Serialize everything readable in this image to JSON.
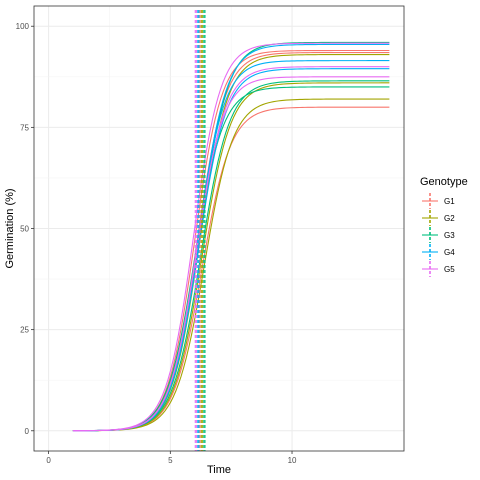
{
  "chart_data": {
    "type": "line",
    "title": "",
    "xlabel": "Time",
    "ylabel": "Germination (%)",
    "xlim": [
      -0.6,
      14.6
    ],
    "ylim": [
      -5,
      105
    ],
    "x_ticks": [
      0,
      5,
      10
    ],
    "x_tick_labels": [
      "0",
      "5",
      "10"
    ],
    "y_ticks": [
      0,
      25,
      50,
      75,
      100
    ],
    "y_tick_labels": [
      "0",
      "25",
      "50",
      "75",
      "100"
    ],
    "grid": true,
    "legend": {
      "title": "Genotype",
      "placement": "right",
      "entries": [
        {
          "name": "G1",
          "color": "#F8766D"
        },
        {
          "name": "G2",
          "color": "#A3A500"
        },
        {
          "name": "G3",
          "color": "#00BF7D"
        },
        {
          "name": "G4",
          "color": "#00B0F6"
        },
        {
          "name": "G5",
          "color": "#E76BF3"
        }
      ]
    },
    "curve_x_range": [
      1,
      14
    ],
    "series": [
      {
        "genotype": "G1",
        "color": "#F8766D",
        "max": 80,
        "t50": 6.3,
        "b": 1.7
      },
      {
        "genotype": "G1",
        "color": "#F8766D",
        "max": 93.5,
        "t50": 6.1,
        "b": 1.75
      },
      {
        "genotype": "G1",
        "color": "#F8766D",
        "max": 94,
        "t50": 6.0,
        "b": 1.8
      },
      {
        "genotype": "G2",
        "color": "#A3A500",
        "max": 82,
        "t50": 6.4,
        "b": 1.7
      },
      {
        "genotype": "G2",
        "color": "#A3A500",
        "max": 86,
        "t50": 6.3,
        "b": 1.7
      },
      {
        "genotype": "G2",
        "color": "#A3A500",
        "max": 93,
        "t50": 6.2,
        "b": 1.75
      },
      {
        "genotype": "G3",
        "color": "#00BF7D",
        "max": 85,
        "t50": 6.0,
        "b": 1.75
      },
      {
        "genotype": "G3",
        "color": "#00BF7D",
        "max": 86.5,
        "t50": 6.25,
        "b": 1.7
      },
      {
        "genotype": "G3",
        "color": "#00BF7D",
        "max": 96,
        "t50": 6.2,
        "b": 1.75
      },
      {
        "genotype": "G4",
        "color": "#00B0F6",
        "max": 89.5,
        "t50": 6.15,
        "b": 1.75
      },
      {
        "genotype": "G4",
        "color": "#00B0F6",
        "max": 91.5,
        "t50": 6.1,
        "b": 1.8
      },
      {
        "genotype": "G4",
        "color": "#00B0F6",
        "max": 95.5,
        "t50": 6.15,
        "b": 1.75
      },
      {
        "genotype": "G5",
        "color": "#E76BF3",
        "max": 87.5,
        "t50": 6.05,
        "b": 1.8
      },
      {
        "genotype": "G5",
        "color": "#E76BF3",
        "max": 90,
        "t50": 6.1,
        "b": 1.75
      },
      {
        "genotype": "G5",
        "color": "#E76BF3",
        "max": 95.8,
        "t50": 5.95,
        "b": 1.8
      }
    ],
    "vertical_lines": [
      {
        "genotype": "G1",
        "color": "#F8766D",
        "x": 6.2
      },
      {
        "genotype": "G2",
        "color": "#A3A500",
        "x": 6.3
      },
      {
        "genotype": "G3",
        "color": "#00BF7D",
        "x": 6.4
      },
      {
        "genotype": "G4",
        "color": "#00B0F6",
        "x": 6.15
      },
      {
        "genotype": "G5",
        "color": "#E76BF3",
        "x": 6.05
      }
    ]
  }
}
